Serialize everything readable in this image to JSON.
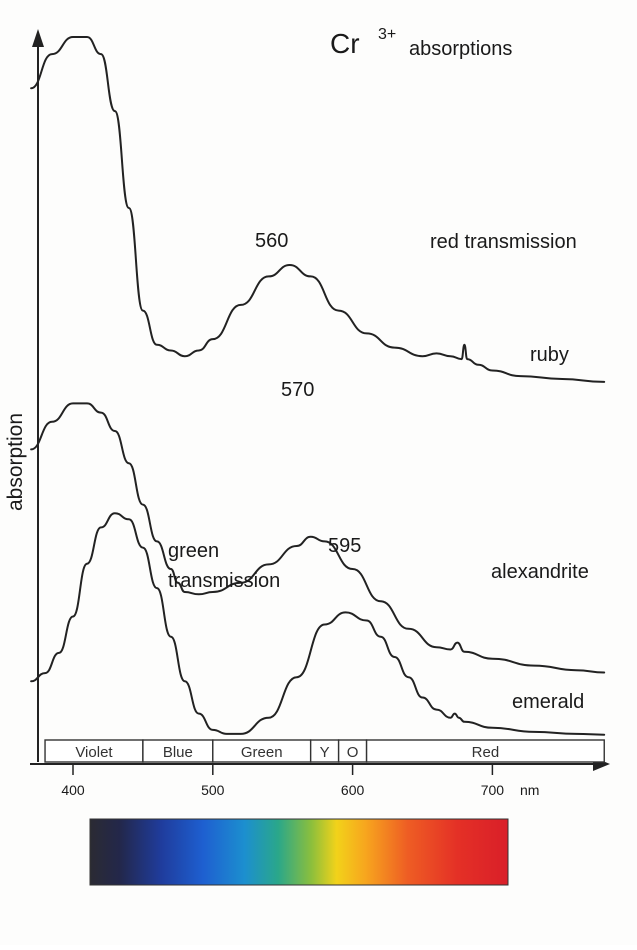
{
  "chart_data": {
    "type": "line",
    "title": {
      "main": "Cr",
      "sup": "3+",
      "rest": "absorptions"
    },
    "ylabel": "absorption",
    "xlabel_unit": "nm",
    "x_ticks": [
      {
        "value": 400,
        "label": "400"
      },
      {
        "value": 500,
        "label": "500"
      },
      {
        "value": 600,
        "label": "600"
      },
      {
        "value": 700,
        "label": "700"
      }
    ],
    "xlim": [
      370,
      790
    ],
    "ylim": [
      0,
      1
    ],
    "grid": false,
    "color_bands": [
      {
        "label": "Violet",
        "start": 380,
        "end": 450
      },
      {
        "label": "Blue",
        "start": 450,
        "end": 500
      },
      {
        "label": "Green",
        "start": 500,
        "end": 570
      },
      {
        "label": "Y",
        "start": 570,
        "end": 590
      },
      {
        "label": "O",
        "start": 590,
        "end": 610
      },
      {
        "label": "Red",
        "start": 610,
        "end": 780
      }
    ],
    "series": [
      {
        "name": "ruby",
        "peak_label": "560",
        "x": [
          370,
          385,
          400,
          410,
          420,
          430,
          440,
          450,
          460,
          470,
          480,
          490,
          500,
          520,
          540,
          555,
          570,
          590,
          610,
          630,
          650,
          660,
          670,
          678,
          680,
          682,
          690,
          700,
          720,
          750,
          780
        ],
        "y": [
          0.91,
          0.97,
          1.0,
          1.0,
          0.97,
          0.87,
          0.7,
          0.52,
          0.46,
          0.45,
          0.44,
          0.45,
          0.47,
          0.53,
          0.58,
          0.6,
          0.58,
          0.52,
          0.48,
          0.455,
          0.44,
          0.445,
          0.44,
          0.435,
          0.46,
          0.435,
          0.425,
          0.415,
          0.405,
          0.4,
          0.395
        ]
      },
      {
        "name": "alexandrite",
        "peak_label": "570",
        "x": [
          370,
          385,
          400,
          410,
          420,
          430,
          440,
          450,
          460,
          470,
          475,
          480,
          490,
          500,
          520,
          540,
          560,
          570,
          580,
          600,
          620,
          640,
          660,
          670,
          675,
          680,
          700,
          730,
          760,
          780
        ],
        "y": [
          0.66,
          0.72,
          0.76,
          0.76,
          0.74,
          0.7,
          0.63,
          0.54,
          0.46,
          0.4,
          0.37,
          0.35,
          0.345,
          0.35,
          0.37,
          0.41,
          0.45,
          0.47,
          0.46,
          0.4,
          0.33,
          0.27,
          0.23,
          0.225,
          0.24,
          0.22,
          0.205,
          0.19,
          0.18,
          0.175
        ]
      },
      {
        "name": "emerald",
        "peak_label": "595",
        "x": [
          370,
          380,
          390,
          400,
          410,
          420,
          430,
          440,
          450,
          460,
          470,
          480,
          490,
          500,
          510,
          520,
          540,
          560,
          580,
          595,
          610,
          620,
          630,
          640,
          650,
          660,
          670,
          673,
          676,
          680,
          700,
          730,
          760,
          780
        ],
        "y": [
          0.15,
          0.17,
          0.22,
          0.31,
          0.44,
          0.53,
          0.565,
          0.55,
          0.48,
          0.38,
          0.26,
          0.15,
          0.07,
          0.03,
          0.02,
          0.02,
          0.06,
          0.16,
          0.29,
          0.32,
          0.3,
          0.26,
          0.21,
          0.16,
          0.11,
          0.08,
          0.06,
          0.07,
          0.06,
          0.05,
          0.035,
          0.025,
          0.02,
          0.018
        ]
      }
    ],
    "annotations": [
      {
        "text": "red transmission",
        "near": "ruby"
      },
      {
        "text": "green",
        "near": "emerald"
      },
      {
        "text": "transmission",
        "near": "emerald"
      }
    ]
  },
  "spectrum_bar": {
    "wavelength_start": 380,
    "wavelength_end": 780
  }
}
